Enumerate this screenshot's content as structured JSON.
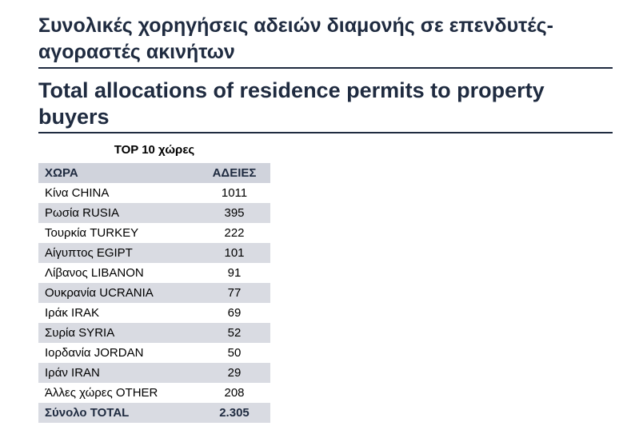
{
  "title_greek": "Συνολικές χορηγήσεις αδειών διαμονής σε επενδυτές-αγοραστές ακινήτων",
  "title_english": "Total allocations of residence permits to property buyers",
  "table": {
    "title": "TOP 10 χώρες",
    "header": {
      "country": "ΧΩΡΑ",
      "value": "ΑΔΕΙΕΣ"
    },
    "total": {
      "country": "Σύνολο TOTAL",
      "value": "2.305"
    }
  },
  "chart_data": {
    "type": "table",
    "title": "TOP 10 χώρες",
    "columns": [
      "ΧΩΡΑ",
      "ΑΔΕΙΕΣ"
    ],
    "rows": [
      {
        "country": "Κίνα CHINA",
        "value": "1011"
      },
      {
        "country": "Ρωσία RUSIA",
        "value": "395"
      },
      {
        "country": "Τουρκία TURKEY",
        "value": "222"
      },
      {
        "country": "Αίγυπτος EGIPT",
        "value": "101"
      },
      {
        "country": "Λίβανος LIBANON",
        "value": "91"
      },
      {
        "country": "Ουκρανία UCRANIA",
        "value": "77"
      },
      {
        "country": "Ιράκ IRAK",
        "value": "69"
      },
      {
        "country": "Συρία SYRIA",
        "value": "52"
      },
      {
        "country": "Ιορδανία JORDAN",
        "value": "50"
      },
      {
        "country": "Ιράν IRAN",
        "value": "29"
      },
      {
        "country": "Άλλες χώρες OTHER",
        "value": "208"
      }
    ],
    "total": {
      "country": "Σύνολο TOTAL",
      "value": "2.305"
    }
  }
}
